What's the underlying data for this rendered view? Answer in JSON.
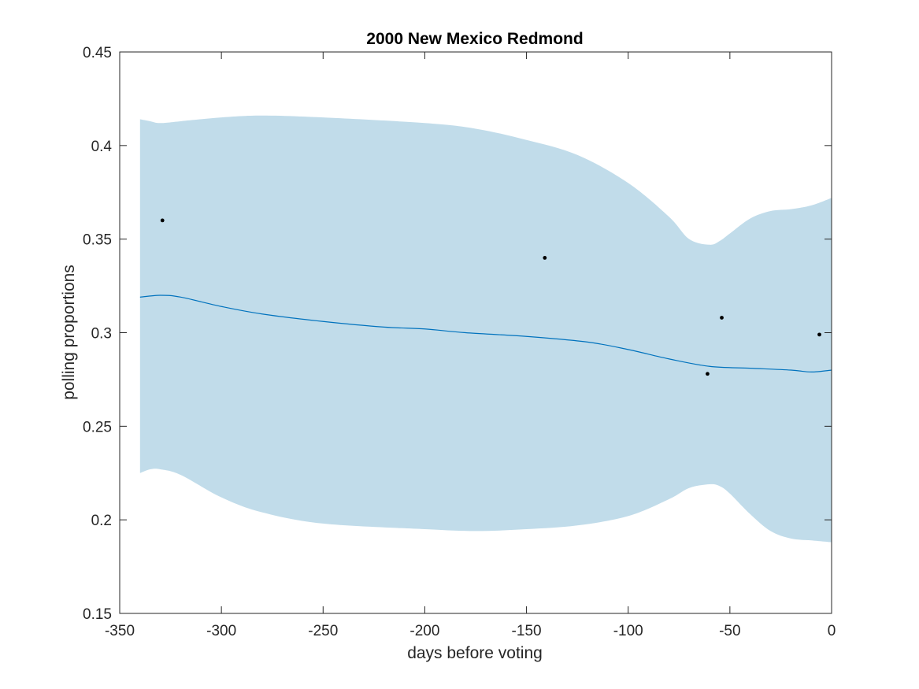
{
  "chart_data": {
    "type": "line",
    "title": "2000 New Mexico Redmond",
    "xlabel": "days before voting",
    "ylabel": "polling proportions",
    "xlim": [
      -350,
      0
    ],
    "ylim": [
      0.15,
      0.45
    ],
    "xticks": [
      -350,
      -300,
      -250,
      -200,
      -150,
      -100,
      -50,
      0
    ],
    "xtick_labels": [
      "-350",
      "-300",
      "-250",
      "-200",
      "-150",
      "-100",
      "-50",
      "0"
    ],
    "yticks": [
      0.15,
      0.2,
      0.25,
      0.3,
      0.35,
      0.4,
      0.45
    ],
    "ytick_labels": [
      "0.15",
      "0.2",
      "0.25",
      "0.3",
      "0.35",
      "0.4",
      "0.45"
    ],
    "grid": false,
    "colors": {
      "band": "#c1dcea",
      "line": "#0072bd",
      "points": "#000000",
      "axes": "#262626"
    },
    "trend": {
      "x": [
        -340,
        -330,
        -320,
        -300,
        -280,
        -250,
        -220,
        -200,
        -180,
        -150,
        -120,
        -100,
        -80,
        -60,
        -40,
        -20,
        -10,
        0
      ],
      "y": [
        0.319,
        0.32,
        0.319,
        0.314,
        0.31,
        0.306,
        0.303,
        0.302,
        0.3,
        0.298,
        0.295,
        0.291,
        0.286,
        0.282,
        0.281,
        0.28,
        0.279,
        0.28
      ]
    },
    "band": {
      "x": [
        -340,
        -335,
        -330,
        -320,
        -300,
        -280,
        -250,
        -200,
        -175,
        -150,
        -125,
        -100,
        -80,
        -70,
        -60,
        -55,
        -50,
        -40,
        -30,
        -20,
        -10,
        0
      ],
      "upper": [
        0.414,
        0.413,
        0.412,
        0.413,
        0.415,
        0.416,
        0.415,
        0.412,
        0.409,
        0.403,
        0.395,
        0.38,
        0.362,
        0.35,
        0.347,
        0.349,
        0.353,
        0.361,
        0.365,
        0.366,
        0.368,
        0.372
      ],
      "lower": [
        0.225,
        0.227,
        0.227,
        0.224,
        0.212,
        0.204,
        0.198,
        0.195,
        0.194,
        0.195,
        0.197,
        0.202,
        0.211,
        0.217,
        0.219,
        0.218,
        0.214,
        0.203,
        0.194,
        0.19,
        0.189,
        0.188
      ]
    },
    "points": {
      "x": [
        -329,
        -141,
        -61,
        -54,
        -6
      ],
      "y": [
        0.36,
        0.34,
        0.278,
        0.308,
        0.299
      ]
    }
  }
}
